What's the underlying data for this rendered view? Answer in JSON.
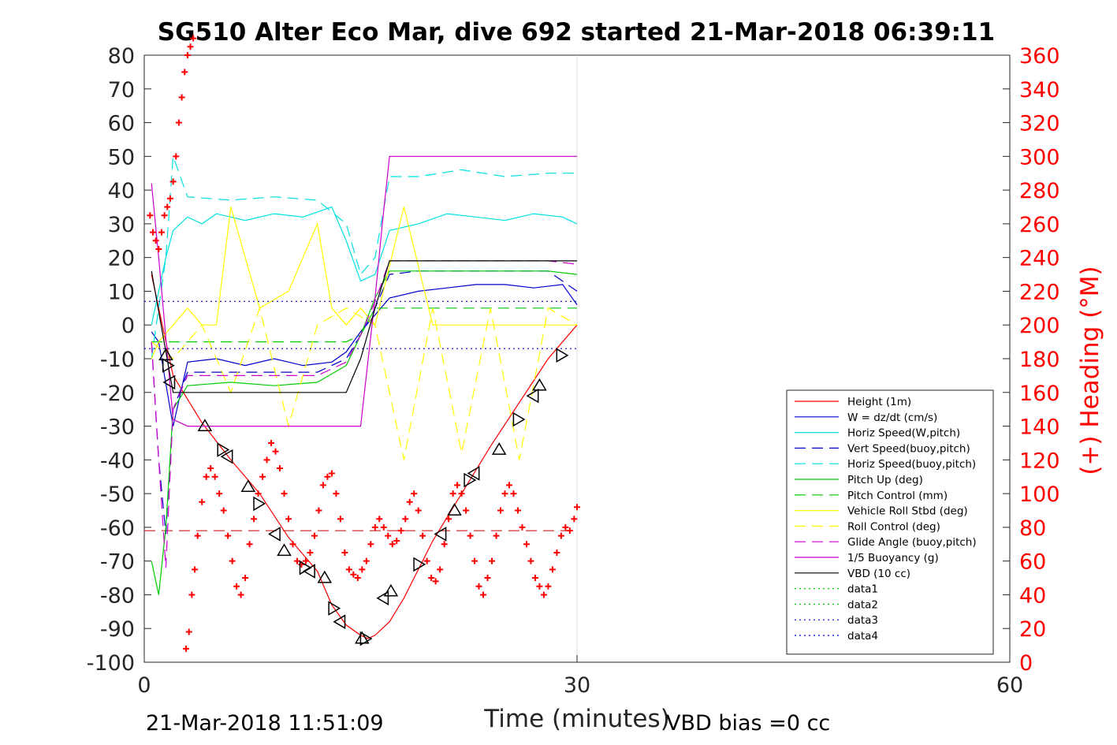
{
  "chart_data": {
    "type": "line",
    "title": "SG510 Alter Eco Mar, dive 692 started 21-Mar-2018 06:39:11",
    "xlabel": "Time (minutes)",
    "ylabel_right": "(+) Heading (°M)",
    "xlim": [
      0,
      60
    ],
    "ylim": [
      -100,
      80
    ],
    "ylim_right": [
      0,
      360
    ],
    "x_ticks": [
      "0",
      "30",
      "60"
    ],
    "y_ticks": [
      "80",
      "70",
      "60",
      "50",
      "40",
      "30",
      "20",
      "10",
      "0",
      "-10",
      "-20",
      "-30",
      "-40",
      "-50",
      "-60",
      "-70",
      "-80",
      "-90",
      "-100"
    ],
    "y_ticks_right": [
      "360",
      "340",
      "320",
      "300",
      "280",
      "260",
      "240",
      "220",
      "200",
      "180",
      "160",
      "140",
      "120",
      "100",
      "80",
      "60",
      "40",
      "20",
      "0"
    ],
    "grid": "x-major only",
    "legend_position": "right-middle",
    "footer_left": "21-Mar-2018 11:51:09",
    "footer_right": "VBD bias =0 cc",
    "series": [
      {
        "name": "Height (1m)",
        "color": "#ff0000",
        "style": "solid",
        "x": [
          0.5,
          2,
          4,
          6,
          8,
          10,
          12,
          13,
          14,
          15,
          15.5,
          16,
          17,
          18,
          20,
          22,
          24,
          26,
          28,
          30
        ],
        "y": [
          15,
          -15,
          -29,
          -40,
          -50,
          -63,
          -73,
          -83,
          -89,
          -92,
          -93,
          -92,
          -88,
          -81,
          -64,
          -50,
          -36,
          -23,
          -10,
          0
        ]
      },
      {
        "name": "W = dz/dt (cm/s)",
        "color": "#0000cc",
        "style": "solid",
        "x": [
          0.5,
          1,
          1.6,
          2,
          3,
          5,
          7,
          9,
          11,
          13,
          14,
          15,
          16,
          17,
          19,
          21,
          23,
          25,
          27,
          29,
          30
        ],
        "y": [
          -2,
          -5,
          -20,
          -30,
          -11,
          -10,
          -12,
          -10,
          -12,
          -11,
          -8,
          -2,
          3,
          8,
          10,
          11,
          12,
          12,
          11,
          12,
          6
        ]
      },
      {
        "name": "Horiz Speed(W,pitch)",
        "color": "#00e0e0",
        "style": "solid",
        "x": [
          0.5,
          1,
          1.5,
          2,
          3,
          4,
          5,
          7,
          9,
          11,
          13,
          14,
          15,
          16,
          17,
          19,
          21,
          23,
          25,
          27,
          29,
          30
        ],
        "y": [
          0,
          10,
          20,
          28,
          32,
          30,
          33,
          31,
          33,
          32,
          35,
          25,
          13,
          15,
          28,
          30,
          33,
          32,
          31,
          33,
          32,
          30
        ]
      },
      {
        "name": "Vert Speed(buoy,pitch)",
        "color": "#0000cc",
        "style": "dash",
        "x": [
          0.5,
          1,
          1.5,
          2,
          3,
          6,
          9,
          12,
          14,
          15,
          16,
          17,
          19,
          22,
          25,
          28,
          30
        ],
        "y": [
          -5,
          -40,
          -62,
          -25,
          -14,
          -14,
          -14,
          -14,
          -10,
          -3,
          5,
          15,
          16,
          16,
          16,
          16,
          10
        ]
      },
      {
        "name": "Horiz Speed(buoy,pitch)",
        "color": "#00e0e0",
        "style": "dash",
        "x": [
          0.5,
          1.5,
          2,
          3,
          6,
          9,
          12,
          14,
          15,
          16,
          17,
          19,
          22,
          25,
          28,
          30
        ],
        "y": [
          -10,
          20,
          50,
          38,
          37,
          38,
          37,
          30,
          15,
          20,
          44,
          44,
          46,
          44,
          45,
          45
        ]
      },
      {
        "name": "Pitch Up (deg)",
        "color": "#00cc00",
        "style": "solid",
        "x": [
          0.5,
          1,
          1.5,
          2,
          3,
          6,
          9,
          12,
          14,
          15,
          16,
          17,
          19,
          22,
          25,
          28,
          30
        ],
        "y": [
          -70,
          -80,
          -60,
          -25,
          -18,
          -17,
          -18,
          -17,
          -12,
          -3,
          8,
          16,
          16,
          16,
          16,
          16,
          15
        ]
      },
      {
        "name": "Pitch Control (mm)",
        "color": "#00cc00",
        "style": "dash",
        "x": [
          0.5,
          2,
          3,
          14,
          15,
          16,
          17,
          30
        ],
        "y": [
          -5,
          -5,
          -5,
          -5,
          -3,
          5,
          5,
          5
        ]
      },
      {
        "name": "Vehicle Roll Stbd (deg)",
        "color": "#ffff00",
        "style": "solid",
        "x": [
          0.5,
          1,
          2,
          3,
          4,
          5,
          6,
          8,
          10,
          12,
          13,
          14,
          15,
          16,
          18,
          20,
          22,
          24,
          26,
          28,
          30
        ],
        "y": [
          -10,
          -5,
          0,
          5,
          0,
          0,
          35,
          5,
          10,
          30,
          5,
          0,
          5,
          0,
          35,
          0,
          0,
          0,
          0,
          0,
          0
        ]
      },
      {
        "name": "Roll Control (deg)",
        "color": "#ffff00",
        "style": "dash",
        "x": [
          0.5,
          2,
          4,
          6,
          8,
          10,
          12,
          14,
          16,
          18,
          20,
          22,
          24,
          26,
          28,
          30
        ],
        "y": [
          -5,
          -10,
          0,
          -20,
          5,
          -30,
          0,
          5,
          0,
          -40,
          5,
          -38,
          5,
          -40,
          5,
          0
        ]
      },
      {
        "name": "Glide Angle (buoy,pitch)",
        "color": "#cc00cc",
        "style": "dash",
        "x": [
          0.5,
          1,
          1.5,
          2,
          3,
          6,
          9,
          12,
          14,
          15,
          16,
          17,
          19,
          22,
          25,
          28,
          30
        ],
        "y": [
          -5,
          -40,
          -72,
          -25,
          -15,
          -15,
          -15,
          -15,
          -11,
          -3,
          7,
          19,
          19,
          19,
          19,
          19,
          18
        ]
      },
      {
        "name": "1/5 Buoyancy (g)",
        "color": "#cc00cc",
        "style": "solid",
        "x": [
          0.5,
          1,
          2,
          3,
          14,
          15,
          16,
          16.5,
          17,
          30
        ],
        "y": [
          42,
          20,
          -28,
          -30,
          -30,
          -30,
          8,
          30,
          50,
          50
        ]
      },
      {
        "name": "VBD (10 cc)",
        "color": "#000000",
        "style": "solid",
        "x": [
          0.5,
          2,
          3,
          14,
          15,
          16,
          17,
          30
        ],
        "y": [
          16,
          -20,
          -20,
          -20,
          -10,
          5,
          19,
          19
        ]
      },
      {
        "name": "data1",
        "color": "#00cc00",
        "style": "dot",
        "x": [],
        "y": []
      },
      {
        "name": "data2",
        "color": "#00cc00",
        "style": "dot",
        "x": [],
        "y": []
      },
      {
        "name": "data3",
        "color": "#0000cc",
        "style": "dot",
        "x": [
          0,
          30
        ],
        "y": [
          7,
          7
        ]
      },
      {
        "name": "data4",
        "color": "#0000cc",
        "style": "dot",
        "x": [
          0,
          30
        ],
        "y": [
          -7,
          -7
        ]
      }
    ],
    "reference_line": {
      "color": "#cc0000",
      "style": "dash",
      "y_right": 78
    },
    "heading_points": {
      "color": "#ff0000",
      "x": [
        0.4,
        0.6,
        0.8,
        1.0,
        1.2,
        1.4,
        1.6,
        1.8,
        2.0,
        2.2,
        2.4,
        2.6,
        2.8,
        3.0,
        3.2,
        3.4,
        2.9,
        3.1,
        3.3,
        3.5,
        3.7,
        4.0,
        4.3,
        4.6,
        4.9,
        5.2,
        5.5,
        5.8,
        6.1,
        6.4,
        6.7,
        7.0,
        7.3,
        7.6,
        7.9,
        8.2,
        8.5,
        8.8,
        9.1,
        9.4,
        9.7,
        10.0,
        10.3,
        10.6,
        10.9,
        11.2,
        11.5,
        11.8,
        12.1,
        12.4,
        12.7,
        13.0,
        13.3,
        13.6,
        13.9,
        14.2,
        14.5,
        14.8,
        15.1,
        15.4,
        15.7,
        16.0,
        16.3,
        16.6,
        16.9,
        17.2,
        17.5,
        17.8,
        18.1,
        18.4,
        18.7,
        19.0,
        19.3,
        19.6,
        19.9,
        20.2,
        20.5,
        20.8,
        21.1,
        21.4,
        21.7,
        22.0,
        22.3,
        22.6,
        22.9,
        23.2,
        23.5,
        23.8,
        24.1,
        24.4,
        24.7,
        25.0,
        25.3,
        25.6,
        25.9,
        26.2,
        26.5,
        26.8,
        27.1,
        27.4,
        27.7,
        28.0,
        28.3,
        28.6,
        28.9,
        29.2,
        29.5,
        29.8,
        30.0
      ],
      "y": [
        265,
        255,
        250,
        245,
        255,
        265,
        270,
        275,
        285,
        300,
        320,
        335,
        350,
        360,
        365,
        370,
        8,
        18,
        40,
        55,
        75,
        95,
        110,
        115,
        110,
        100,
        90,
        75,
        60,
        45,
        40,
        50,
        70,
        85,
        100,
        110,
        120,
        130,
        125,
        115,
        100,
        85,
        70,
        60,
        58,
        60,
        65,
        75,
        90,
        105,
        110,
        112,
        100,
        85,
        65,
        55,
        52,
        50,
        55,
        60,
        70,
        80,
        85,
        80,
        75,
        70,
        72,
        78,
        85,
        95,
        100,
        90,
        75,
        60,
        50,
        48,
        55,
        70,
        85,
        100,
        105,
        100,
        90,
        75,
        60,
        45,
        40,
        50,
        60,
        75,
        90,
        100,
        105,
        100,
        90,
        80,
        70,
        60,
        50,
        45,
        40,
        45,
        55,
        65,
        75,
        80,
        78,
        85,
        92
      ]
    },
    "triangle_markers": {
      "color": "#000000",
      "x": [
        1.5,
        1.6,
        1.8,
        4.2,
        5.4,
        5.8,
        7.2,
        7.9,
        9.1,
        9.7,
        11.1,
        11.5,
        12.5,
        13.1,
        13.6,
        15.1,
        15.3,
        16.6,
        17.1,
        19.0,
        20.6,
        21.5,
        22.5,
        22.9,
        24.6,
        25.9,
        27.0,
        27.4,
        28.9
      ],
      "y": [
        -9,
        -12,
        -17,
        -30,
        -37,
        -39,
        -48,
        -53,
        -62,
        -67,
        -72,
        -73,
        -75,
        -84,
        -88,
        -93,
        -93,
        -81,
        -79,
        -71,
        -62,
        -55,
        -46,
        -44,
        -37,
        -28,
        -21,
        -18,
        -9
      ]
    }
  }
}
